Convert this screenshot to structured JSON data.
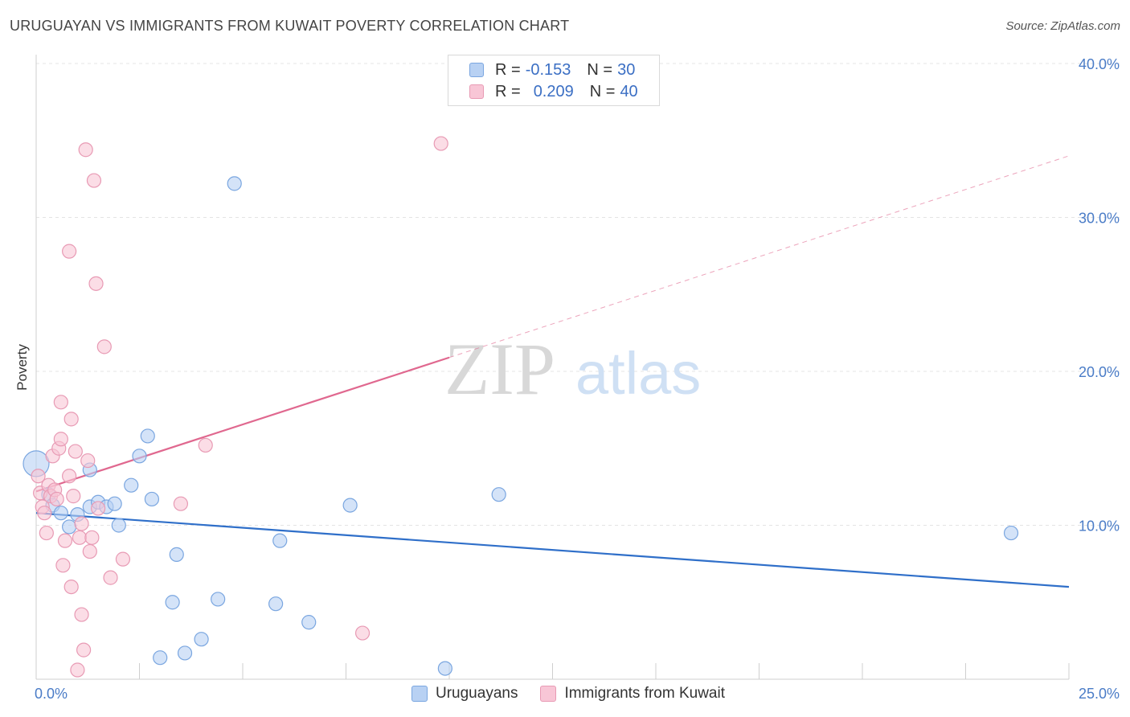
{
  "header": {
    "title": "URUGUAYAN VS IMMIGRANTS FROM KUWAIT POVERTY CORRELATION CHART",
    "source": "Source: ZipAtlas.com"
  },
  "watermark": {
    "zip": "ZIP",
    "atlas": "atlas"
  },
  "legend": {
    "rows": [
      {
        "r_label": "R =",
        "r_value": "-0.153",
        "n_label": "N =",
        "n_value": "30"
      },
      {
        "r_label": "R =",
        "r_value": "0.209",
        "n_label": "N =",
        "n_value": "40"
      }
    ]
  },
  "colors": {
    "series1_fill": "#b8d1f3",
    "series1_stroke": "#7aa6e0",
    "series1_line": "#2f6fc9",
    "series2_fill": "#f8c6d6",
    "series2_stroke": "#e89ab4",
    "series2_line": "#e0688f"
  },
  "chart_data": {
    "type": "scatter",
    "title": "URUGUAYAN VS IMMIGRANTS FROM KUWAIT POVERTY CORRELATION CHART",
    "xlabel": "",
    "ylabel": "Poverty",
    "xlim": [
      0,
      25
    ],
    "ylim": [
      0,
      40
    ],
    "x_tick_labels": [
      "0.0%",
      "25.0%"
    ],
    "y_ticks": [
      10,
      20,
      30,
      40
    ],
    "y_tick_labels": [
      "10.0%",
      "20.0%",
      "30.0%",
      "40.0%"
    ],
    "grid": true,
    "legend_placement": "top-center",
    "series": [
      {
        "name": "Uruguayans",
        "points": [
          [
            0.0,
            14.0
          ],
          [
            0.3,
            12.0
          ],
          [
            0.4,
            11.3
          ],
          [
            0.6,
            10.8
          ],
          [
            0.8,
            9.9
          ],
          [
            1.0,
            10.7
          ],
          [
            1.3,
            11.2
          ],
          [
            1.3,
            13.6
          ],
          [
            1.5,
            11.5
          ],
          [
            1.7,
            11.2
          ],
          [
            1.9,
            11.4
          ],
          [
            2.0,
            10.0
          ],
          [
            2.3,
            12.6
          ],
          [
            2.5,
            14.5
          ],
          [
            2.7,
            15.8
          ],
          [
            2.8,
            11.7
          ],
          [
            3.0,
            1.4
          ],
          [
            3.3,
            5.0
          ],
          [
            3.4,
            8.1
          ],
          [
            3.6,
            1.7
          ],
          [
            4.0,
            2.6
          ],
          [
            4.4,
            5.2
          ],
          [
            4.8,
            32.2
          ],
          [
            5.8,
            4.9
          ],
          [
            5.9,
            9.0
          ],
          [
            6.6,
            3.7
          ],
          [
            7.6,
            11.3
          ],
          [
            9.9,
            0.7
          ],
          [
            11.2,
            12.0
          ],
          [
            23.6,
            9.5
          ]
        ],
        "trend": {
          "x": [
            0,
            25
          ],
          "y": [
            10.8,
            6.0
          ]
        }
      },
      {
        "name": "Immigrants from Kuwait",
        "points": [
          [
            0.1,
            12.1
          ],
          [
            0.15,
            11.2
          ],
          [
            0.2,
            10.8
          ],
          [
            0.25,
            9.5
          ],
          [
            0.3,
            12.6
          ],
          [
            0.35,
            11.9
          ],
          [
            0.4,
            14.5
          ],
          [
            0.45,
            12.3
          ],
          [
            0.5,
            11.7
          ],
          [
            0.55,
            15.0
          ],
          [
            0.6,
            15.6
          ],
          [
            0.6,
            18.0
          ],
          [
            0.65,
            7.4
          ],
          [
            0.7,
            9.0
          ],
          [
            0.8,
            13.2
          ],
          [
            0.8,
            27.8
          ],
          [
            0.85,
            6.0
          ],
          [
            0.85,
            16.9
          ],
          [
            0.9,
            11.9
          ],
          [
            0.95,
            14.8
          ],
          [
            1.0,
            0.6
          ],
          [
            1.05,
            9.2
          ],
          [
            1.1,
            4.2
          ],
          [
            1.1,
            10.1
          ],
          [
            1.15,
            1.9
          ],
          [
            1.2,
            34.4
          ],
          [
            1.25,
            14.2
          ],
          [
            1.3,
            8.3
          ],
          [
            1.35,
            9.2
          ],
          [
            1.4,
            32.4
          ],
          [
            1.45,
            25.7
          ],
          [
            1.5,
            11.1
          ],
          [
            1.65,
            21.6
          ],
          [
            1.8,
            6.6
          ],
          [
            2.1,
            7.8
          ],
          [
            3.5,
            11.4
          ],
          [
            4.1,
            15.2
          ],
          [
            7.9,
            3.0
          ],
          [
            9.8,
            34.8
          ],
          [
            0.05,
            13.2
          ]
        ],
        "trend_solid": {
          "x": [
            0,
            10
          ],
          "y": [
            12.2,
            20.9
          ]
        },
        "trend_dashed": {
          "x": [
            10,
            25
          ],
          "y": [
            20.9,
            34.0
          ]
        }
      }
    ]
  }
}
